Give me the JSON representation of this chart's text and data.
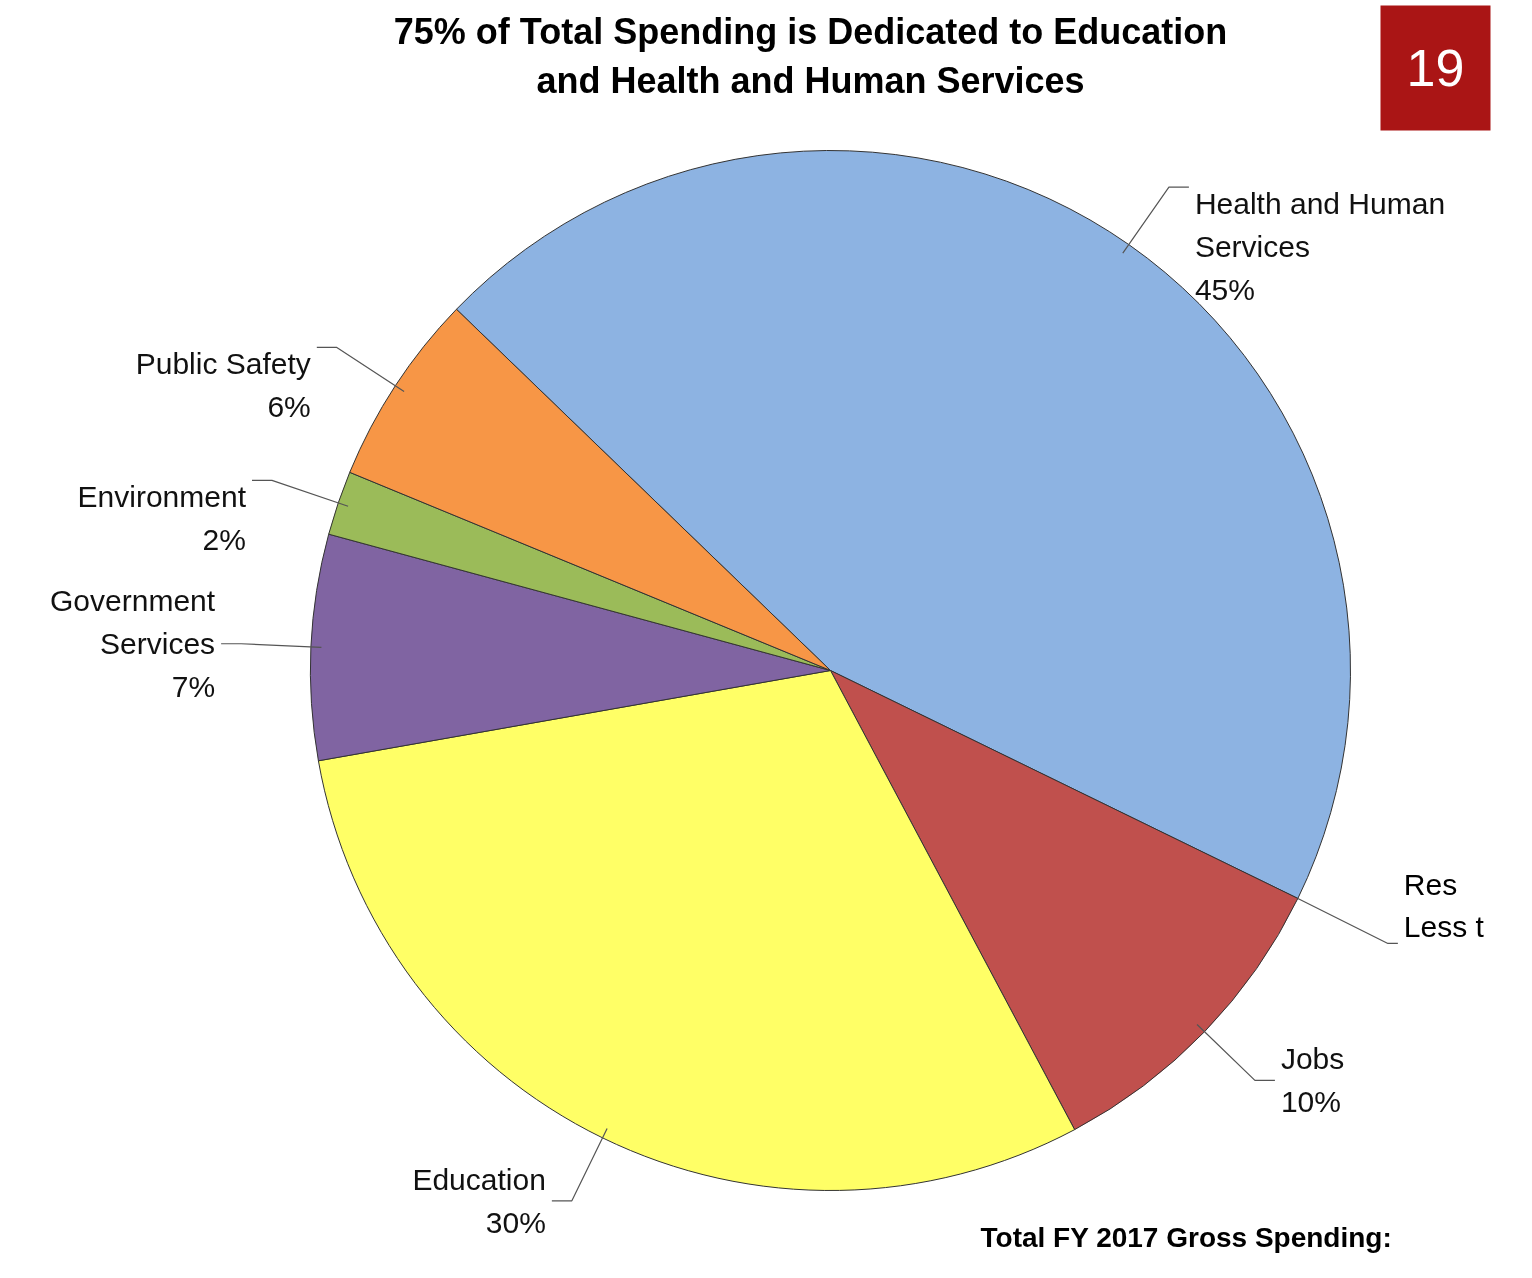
{
  "chart_data": {
    "type": "pie",
    "title": "75% of Total Spending is Dedicated to Education\nand Health and Human Services",
    "categories": [
      "Health and Human Services",
      "Jobs",
      "Education",
      "Government Services",
      "Environment",
      "Public Safety"
    ],
    "values": [
      45,
      10,
      30,
      7,
      2,
      6
    ],
    "value_labels": [
      "45%",
      "10%",
      "30%",
      "7%",
      "2%",
      "6%"
    ],
    "colors": [
      "#8db3e2",
      "#c0504d",
      "#ffff66",
      "#8064a2",
      "#9bbb59",
      "#f79646"
    ],
    "annotations": [
      "19",
      "Res\nLess t",
      "Total FY 2017 Gross Spending:"
    ]
  }
}
